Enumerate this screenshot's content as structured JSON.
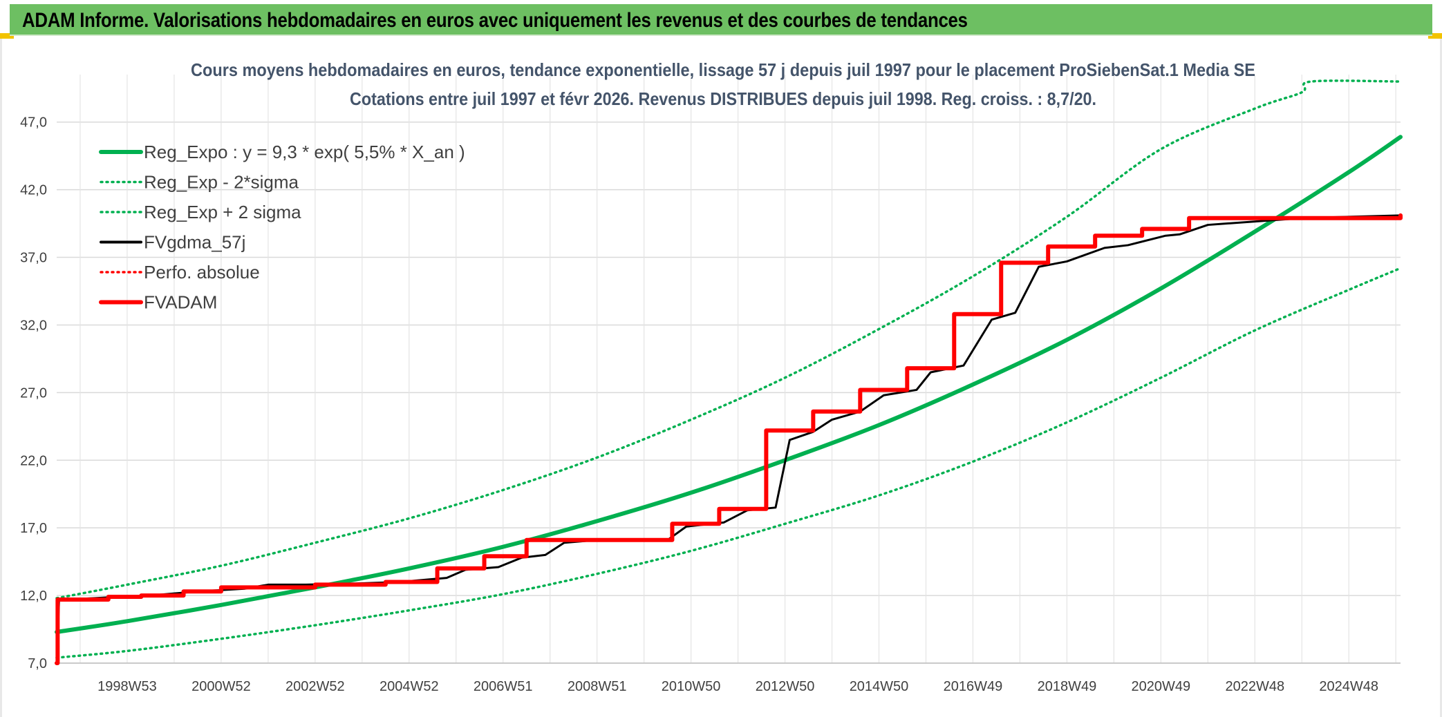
{
  "header": {
    "banner_title": "ADAM Informe. Valorisations hebdomadaires en euros avec uniquement les revenus et des courbes de tendances"
  },
  "colors": {
    "banner_bg": "#6dbf62",
    "accent_corner": "#f2c300",
    "green": "#00b050",
    "red": "#ff0000",
    "black": "#000000",
    "grid": "#d9d9d9"
  },
  "chart_data": {
    "type": "line",
    "title": "Cours moyens hebdomadaires en euros, tendance exponentielle, lissage 57 j depuis juil 1997 pour le placement ProSiebenSat.1 Media SE",
    "subtitle": "Cotations entre juil 1997 et févr 2026. Revenus DISTRIBUES depuis juil 1998. Reg. croiss. : 8,7/20.",
    "xlim": [
      1997.5,
      2026.1
    ],
    "ylim": [
      7.0,
      50.0
    ],
    "y_ticks": [
      7.0,
      12.0,
      17.0,
      22.0,
      27.0,
      32.0,
      37.0,
      42.0,
      47.0
    ],
    "y_tick_labels": [
      "7,0",
      "12,0",
      "17,0",
      "22,0",
      "27,0",
      "32,0",
      "37,0",
      "42,0",
      "47,0"
    ],
    "x_ticks": [
      1999.0,
      2001.0,
      2003.0,
      2005.0,
      2007.0,
      2009.0,
      2011.0,
      2013.0,
      2015.0,
      2017.0,
      2019.0,
      2021.0,
      2023.0,
      2025.0
    ],
    "x_tick_labels": [
      "1998W53",
      "2000W52",
      "2002W52",
      "2004W52",
      "2006W51",
      "2008W51",
      "2010W50",
      "2012W50",
      "2014W50",
      "2016W49",
      "2018W49",
      "2020W49",
      "2022W48",
      "2024W48"
    ],
    "grid": true,
    "legend_position": "top-left",
    "series": [
      {
        "name": "Reg_Expo : y = 9,3 * exp( 5,5% *  X_an )",
        "style": "solid-thick",
        "color": "#00b050",
        "x": [
          1997.5,
          1999.0,
          2001.0,
          2003.0,
          2005.0,
          2007.0,
          2009.0,
          2011.0,
          2013.0,
          2015.0,
          2017.0,
          2019.0,
          2021.0,
          2023.0,
          2025.0,
          2026.1
        ],
        "y": [
          9.3,
          10.1,
          11.3,
          12.6,
          14.0,
          15.6,
          17.5,
          19.6,
          22.0,
          24.6,
          27.6,
          30.9,
          34.7,
          38.9,
          43.3,
          45.9
        ]
      },
      {
        "name": "Reg_Exp - 2*sigma",
        "style": "dotted",
        "color": "#00b050",
        "x": [
          1997.5,
          1999.0,
          2001.0,
          2003.0,
          2005.0,
          2007.0,
          2009.0,
          2011.0,
          2013.0,
          2015.0,
          2017.0,
          2019.0,
          2021.0,
          2023.0,
          2025.0,
          2026.1
        ],
        "y": [
          7.4,
          7.9,
          8.8,
          9.8,
          10.9,
          12.1,
          13.6,
          15.3,
          17.3,
          19.4,
          21.9,
          24.8,
          28.1,
          31.6,
          34.6,
          36.2
        ]
      },
      {
        "name": "Reg_Exp + 2 sigma",
        "style": "dotted",
        "color": "#00b050",
        "x": [
          1997.5,
          1999.0,
          2001.0,
          2003.0,
          2005.0,
          2007.0,
          2009.0,
          2011.0,
          2013.0,
          2015.0,
          2017.0,
          2019.0,
          2021.0,
          2023.0,
          2024.0,
          2024.2,
          2026.1
        ],
        "y": [
          11.8,
          12.8,
          14.2,
          15.9,
          17.7,
          19.8,
          22.2,
          25.0,
          28.1,
          31.7,
          35.6,
          40.0,
          45.0,
          48.0,
          49.2,
          50.0,
          50.0
        ]
      },
      {
        "name": "FVgdma_57j",
        "style": "solid",
        "color": "#000000",
        "x": [
          1997.5,
          1997.55,
          1998.3,
          1998.8,
          1999.5,
          2000.5,
          2001.5,
          2002.0,
          2002.8,
          2004.0,
          2004.8,
          2005.8,
          2006.2,
          2006.9,
          2007.4,
          2007.9,
          2008.3,
          2009.0,
          2010.5,
          2010.9,
          2011.7,
          2012.2,
          2012.8,
          2013.1,
          2013.6,
          2014.0,
          2014.6,
          2015.1,
          2015.8,
          2016.1,
          2016.8,
          2017.4,
          2017.9,
          2018.4,
          2019.0,
          2019.8,
          2020.3,
          2021.1,
          2021.4,
          2022.0,
          2024.0,
          2026.1
        ],
        "y": [
          7.0,
          11.7,
          11.8,
          11.9,
          12.0,
          12.3,
          12.5,
          12.8,
          12.8,
          12.9,
          13.0,
          13.3,
          13.9,
          14.1,
          14.8,
          15.0,
          15.9,
          16.1,
          16.1,
          17.1,
          17.4,
          18.3,
          18.5,
          23.5,
          24.1,
          25.0,
          25.6,
          26.8,
          27.2,
          28.5,
          29.0,
          32.4,
          32.9,
          36.3,
          36.7,
          37.7,
          37.9,
          38.6,
          38.7,
          39.4,
          39.9,
          40.1
        ]
      },
      {
        "name": "Perfo. absolue",
        "style": "dotted",
        "color": "#ff0000",
        "x": [],
        "y": []
      },
      {
        "name": "FVADAM",
        "style": "solid-thick",
        "color": "#ff0000",
        "step": true,
        "x": [
          1997.5,
          1997.52,
          1998.6,
          1999.3,
          2000.2,
          2001.0,
          2003.0,
          2004.5,
          2005.6,
          2006.6,
          2007.5,
          2010.6,
          2011.6,
          2012.6,
          2013.6,
          2014.6,
          2015.6,
          2016.6,
          2017.6,
          2018.6,
          2019.6,
          2020.6,
          2021.6,
          2026.1
        ],
        "y": [
          7.0,
          11.7,
          11.9,
          12.0,
          12.3,
          12.6,
          12.8,
          13.0,
          14.0,
          14.9,
          16.1,
          17.3,
          18.4,
          24.2,
          25.6,
          27.2,
          28.8,
          32.8,
          36.6,
          37.8,
          38.6,
          39.1,
          39.9,
          40.1
        ]
      }
    ]
  }
}
